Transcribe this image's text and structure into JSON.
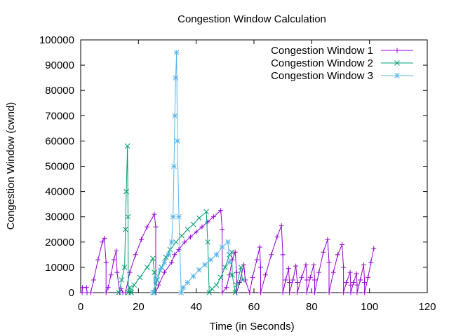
{
  "chart_data": {
    "type": "line",
    "title": "Congestion Window Calculation",
    "xlabel": "Time (in Seconds)",
    "ylabel": "Congestion Window (cwnd)",
    "xlim": [
      0,
      120
    ],
    "ylim": [
      0,
      100000
    ],
    "xticks": [
      "0",
      "20",
      "40",
      "60",
      "80",
      "100",
      "120"
    ],
    "yticks": [
      "0",
      "10000",
      "20000",
      "30000",
      "40000",
      "50000",
      "60000",
      "70000",
      "80000",
      "90000",
      "100000"
    ],
    "legend_position": "top-right",
    "grid": false,
    "series": [
      {
        "name": "Congestion Window 1",
        "color": "#9400d3",
        "marker": "plus",
        "points": [
          [
            0.5,
            0
          ],
          [
            0.6,
            2000
          ],
          [
            2.0,
            2000
          ],
          [
            2.2,
            0
          ],
          [
            3.5,
            0
          ],
          [
            4.5,
            5000
          ],
          [
            6.0,
            13000
          ],
          [
            7.5,
            20000
          ],
          [
            8.2,
            21500
          ],
          [
            8.8,
            12000
          ],
          [
            8.8,
            0
          ],
          [
            9.5,
            2000
          ],
          [
            10.5,
            7000
          ],
          [
            11.5,
            13000
          ],
          [
            12.3,
            16500
          ],
          [
            12.6,
            8000
          ],
          [
            13.5,
            0
          ],
          [
            14.0,
            1500
          ],
          [
            14.6,
            0
          ],
          [
            15.5,
            0
          ],
          [
            17.0,
            8000
          ],
          [
            19.0,
            15000
          ],
          [
            21.0,
            21000
          ],
          [
            23.0,
            26000
          ],
          [
            25.5,
            31000
          ],
          [
            26.0,
            26000
          ],
          [
            26.0,
            0
          ],
          [
            27.0,
            3000
          ],
          [
            29.0,
            8000
          ],
          [
            31.5,
            12000
          ],
          [
            32.5,
            15000
          ],
          [
            34.0,
            17000
          ],
          [
            36.0,
            20000
          ],
          [
            38.0,
            22000
          ],
          [
            40.0,
            24000
          ],
          [
            42.0,
            26000
          ],
          [
            44.0,
            28000
          ],
          [
            46.0,
            30000
          ],
          [
            48.5,
            32500
          ],
          [
            49.0,
            25000
          ],
          [
            49.0,
            0
          ],
          [
            50.5,
            2000
          ],
          [
            51.5,
            7000
          ],
          [
            52.5,
            13000
          ],
          [
            53.5,
            16000
          ],
          [
            54.0,
            8000
          ],
          [
            54.0,
            0
          ],
          [
            55.0,
            4000
          ],
          [
            56.5,
            11000
          ],
          [
            57.0,
            5000
          ],
          [
            58.5,
            0
          ],
          [
            59.5,
            6000
          ],
          [
            61.0,
            13000
          ],
          [
            62.0,
            18000
          ],
          [
            62.3,
            10000
          ],
          [
            62.3,
            0
          ],
          [
            64.0,
            7000
          ],
          [
            66.0,
            15000
          ],
          [
            68.0,
            22000
          ],
          [
            69.5,
            26500
          ],
          [
            70.0,
            15000
          ],
          [
            70.0,
            0
          ],
          [
            71.0,
            5000
          ],
          [
            72.0,
            9500
          ],
          [
            72.3,
            4000
          ],
          [
            72.3,
            0
          ],
          [
            73.5,
            5000
          ],
          [
            74.5,
            10500
          ],
          [
            75.0,
            4000
          ],
          [
            75.0,
            0
          ],
          [
            76.5,
            6000
          ],
          [
            78.0,
            11000
          ],
          [
            78.3,
            5000
          ],
          [
            78.3,
            0
          ],
          [
            79.5,
            6000
          ],
          [
            80.7,
            11000
          ],
          [
            81.0,
            5000
          ],
          [
            81.0,
            0
          ],
          [
            82.5,
            8000
          ],
          [
            84.0,
            16000
          ],
          [
            85.5,
            21000
          ],
          [
            86.0,
            12000
          ],
          [
            86.0,
            0
          ],
          [
            87.5,
            8000
          ],
          [
            89.0,
            15000
          ],
          [
            90.5,
            19000
          ],
          [
            91.0,
            10000
          ],
          [
            91.0,
            0
          ],
          [
            92.0,
            4000
          ],
          [
            93.3,
            8000
          ],
          [
            93.5,
            3000
          ],
          [
            93.5,
            0
          ],
          [
            94.5,
            4000
          ],
          [
            95.5,
            7500
          ],
          [
            95.7,
            3000
          ],
          [
            95.7,
            0
          ],
          [
            96.8,
            5000
          ],
          [
            98.0,
            11000
          ],
          [
            98.3,
            4000
          ],
          [
            98.3,
            0
          ],
          [
            99.5,
            6000
          ],
          [
            100.5,
            12000
          ],
          [
            101.5,
            17500
          ]
        ]
      },
      {
        "name": "Congestion Window 2",
        "color": "#009e73",
        "marker": "cross",
        "points": [
          [
            13.2,
            0
          ],
          [
            14.2,
            5000
          ],
          [
            15.2,
            10000
          ],
          [
            15.5,
            25000
          ],
          [
            15.8,
            40000
          ],
          [
            16.2,
            58000
          ],
          [
            16.4,
            30000
          ],
          [
            16.5,
            0
          ],
          [
            17.0,
            2000
          ],
          [
            17.5,
            0
          ],
          [
            17.5,
            0
          ],
          [
            18.5,
            3000
          ],
          [
            20.5,
            6000
          ],
          [
            23.0,
            10000
          ],
          [
            25.0,
            13500
          ],
          [
            25.5,
            8000
          ],
          [
            25.5,
            0
          ],
          [
            26.5,
            5000
          ],
          [
            28.0,
            10000
          ],
          [
            29.5,
            14000
          ],
          [
            31.0,
            17000
          ],
          [
            33.0,
            20000
          ],
          [
            35.0,
            22500
          ],
          [
            37.0,
            25000
          ],
          [
            39.0,
            27000
          ],
          [
            41.0,
            29500
          ],
          [
            43.5,
            32000
          ],
          [
            44.0,
            20000
          ],
          [
            44.5,
            0
          ],
          [
            45.5,
            1500
          ],
          [
            47.0,
            3000
          ],
          [
            48.5,
            6000
          ],
          [
            50.0,
            10000
          ],
          [
            51.5,
            15000
          ],
          [
            52.3,
            16000
          ],
          [
            52.5,
            7000
          ],
          [
            53.5,
            0
          ],
          [
            54.0,
            3000
          ],
          [
            55.5,
            10000
          ],
          [
            56.0,
            5000
          ]
        ]
      },
      {
        "name": "Congestion Window 3",
        "color": "#56b4e9",
        "marker": "star",
        "points": [
          [
            25.0,
            0
          ],
          [
            26.0,
            5000
          ],
          [
            27.5,
            9000
          ],
          [
            29.0,
            12000
          ],
          [
            30.5,
            15000
          ],
          [
            31.5,
            20000
          ],
          [
            32.0,
            30000
          ],
          [
            32.3,
            50000
          ],
          [
            32.6,
            70000
          ],
          [
            32.9,
            85000
          ],
          [
            33.2,
            95000
          ],
          [
            33.5,
            60000
          ],
          [
            34.0,
            30000
          ],
          [
            34.8,
            0
          ],
          [
            35.5,
            2000
          ],
          [
            37.0,
            4000
          ],
          [
            39.0,
            6500
          ],
          [
            41.0,
            9000
          ],
          [
            43.0,
            11000
          ],
          [
            45.0,
            13000
          ],
          [
            47.0,
            15000
          ],
          [
            49.0,
            18000
          ],
          [
            51.0,
            20000
          ],
          [
            51.5,
            12000
          ]
        ]
      }
    ]
  }
}
